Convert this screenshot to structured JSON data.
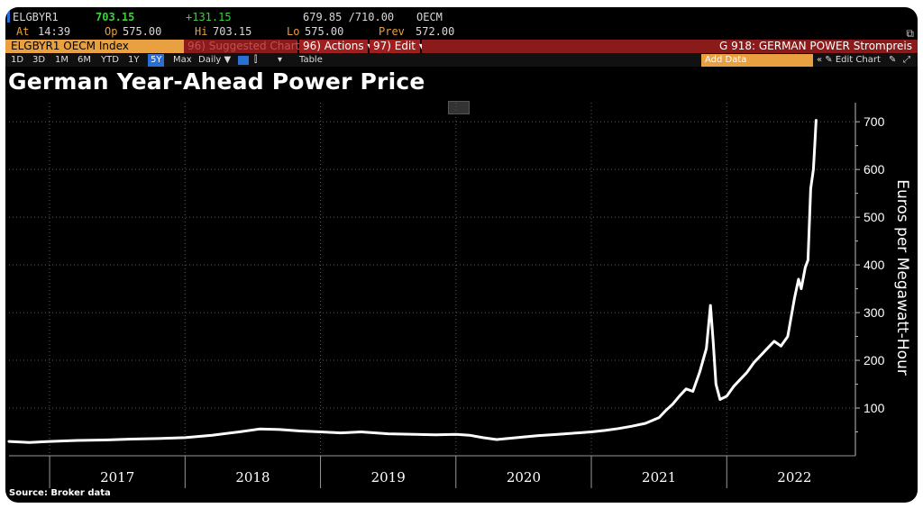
{
  "terminal": {
    "ticker": "ELGBYR1",
    "last": "703.15",
    "change": "+131.15",
    "bid_ask": "679.85 /710.00",
    "exchange": "OECM",
    "at_label": "At",
    "at_time": "14:39",
    "op_label": "Op",
    "op": "575.00",
    "hi_label": "Hi",
    "hi": "703.15",
    "lo_label": "Lo",
    "lo": "575.00",
    "prev_label": "Prev",
    "prev": "572.00",
    "security": "ELGBYR1 OECM Index",
    "suggested": "96) Suggested Charts",
    "actions": "96) Actions ▾",
    "edit": "97) Edit ▾",
    "function": "G 918: GERMAN POWER Strompreis",
    "periods": [
      "1D",
      "3D",
      "1M",
      "6M",
      "YTD",
      "1Y",
      "5Y",
      "Max"
    ],
    "active_period": "5Y",
    "frequency": "Daily ▼",
    "table": "Table",
    "add_data": "Add Data",
    "edit_chart": "« ✎ Edit Chart",
    "colors": {
      "accent": "#e8a040",
      "header_red": "#8b1a1a",
      "active_blue": "#2a6fd6"
    }
  },
  "chart_data": {
    "type": "line",
    "title": "German Year-Ahead Power Price",
    "ylabel": "Euros per Megawatt-Hour",
    "xlabel": "",
    "source": "Source: Broker data",
    "ylim": [
      0,
      740
    ],
    "yticks": [
      100,
      200,
      300,
      400,
      500,
      600,
      700
    ],
    "xlim": [
      2016.7,
      2022.95
    ],
    "year_labels": [
      "2017",
      "2018",
      "2019",
      "2020",
      "2021",
      "2022"
    ],
    "year_boundaries": [
      2017,
      2018,
      2019,
      2020,
      2021,
      2022
    ],
    "series": [
      {
        "color": "#ffffff",
        "x": [
          2016.7,
          2016.85,
          2017.0,
          2017.2,
          2017.4,
          2017.6,
          2017.8,
          2018.0,
          2018.2,
          2018.4,
          2018.55,
          2018.7,
          2018.85,
          2019.0,
          2019.15,
          2019.3,
          2019.5,
          2019.7,
          2019.85,
          2020.0,
          2020.1,
          2020.2,
          2020.3,
          2020.45,
          2020.6,
          2020.75,
          2020.9,
          2021.0,
          2021.1,
          2021.2,
          2021.3,
          2021.4,
          2021.5,
          2021.55,
          2021.6,
          2021.65,
          2021.7,
          2021.75,
          2021.8,
          2021.85,
          2021.88,
          2021.9,
          2021.92,
          2021.95,
          2022.0,
          2022.05,
          2022.1,
          2022.15,
          2022.2,
          2022.25,
          2022.3,
          2022.35,
          2022.4,
          2022.45,
          2022.5,
          2022.53,
          2022.55,
          2022.58,
          2022.6,
          2022.62,
          2022.64,
          2022.65,
          2022.66
        ],
        "values": [
          30,
          28,
          30,
          32,
          33,
          35,
          36,
          38,
          43,
          50,
          56,
          55,
          52,
          50,
          48,
          50,
          46,
          45,
          44,
          45,
          43,
          38,
          34,
          38,
          42,
          45,
          48,
          50,
          53,
          57,
          62,
          68,
          80,
          95,
          108,
          125,
          140,
          135,
          175,
          225,
          315,
          240,
          150,
          118,
          125,
          145,
          160,
          175,
          195,
          210,
          225,
          240,
          230,
          250,
          330,
          370,
          350,
          395,
          410,
          560,
          600,
          650,
          703
        ]
      }
    ]
  }
}
